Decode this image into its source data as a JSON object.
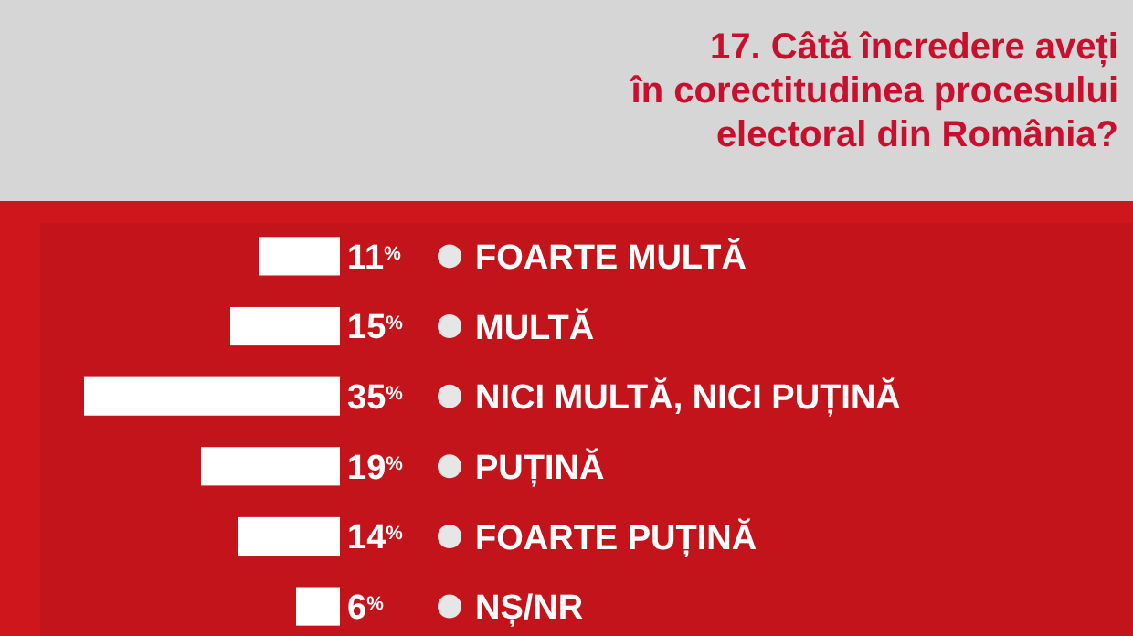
{
  "chart_data": {
    "type": "bar",
    "orientation": "horizontal",
    "title": "17. Câtă încredere aveți\nîn corectitudinea procesului\nelectoral din România?",
    "categories": [
      "FOARTE MULTĂ",
      "MULTĂ",
      "NICI MULTĂ, NICI PUȚINĂ",
      "PUȚINĂ",
      "FOARTE PUȚINĂ",
      "NȘ/NR"
    ],
    "values": [
      11,
      15,
      35,
      19,
      14,
      6
    ],
    "color": "#ffffff",
    "value_labels": [
      "11$^{%}$",
      "15$^{%}$",
      "35$^{%}$",
      "19$^{%}$",
      "14$^{%}$",
      "6$^{%}$"
    ],
    "data_labels": true
  }
}
